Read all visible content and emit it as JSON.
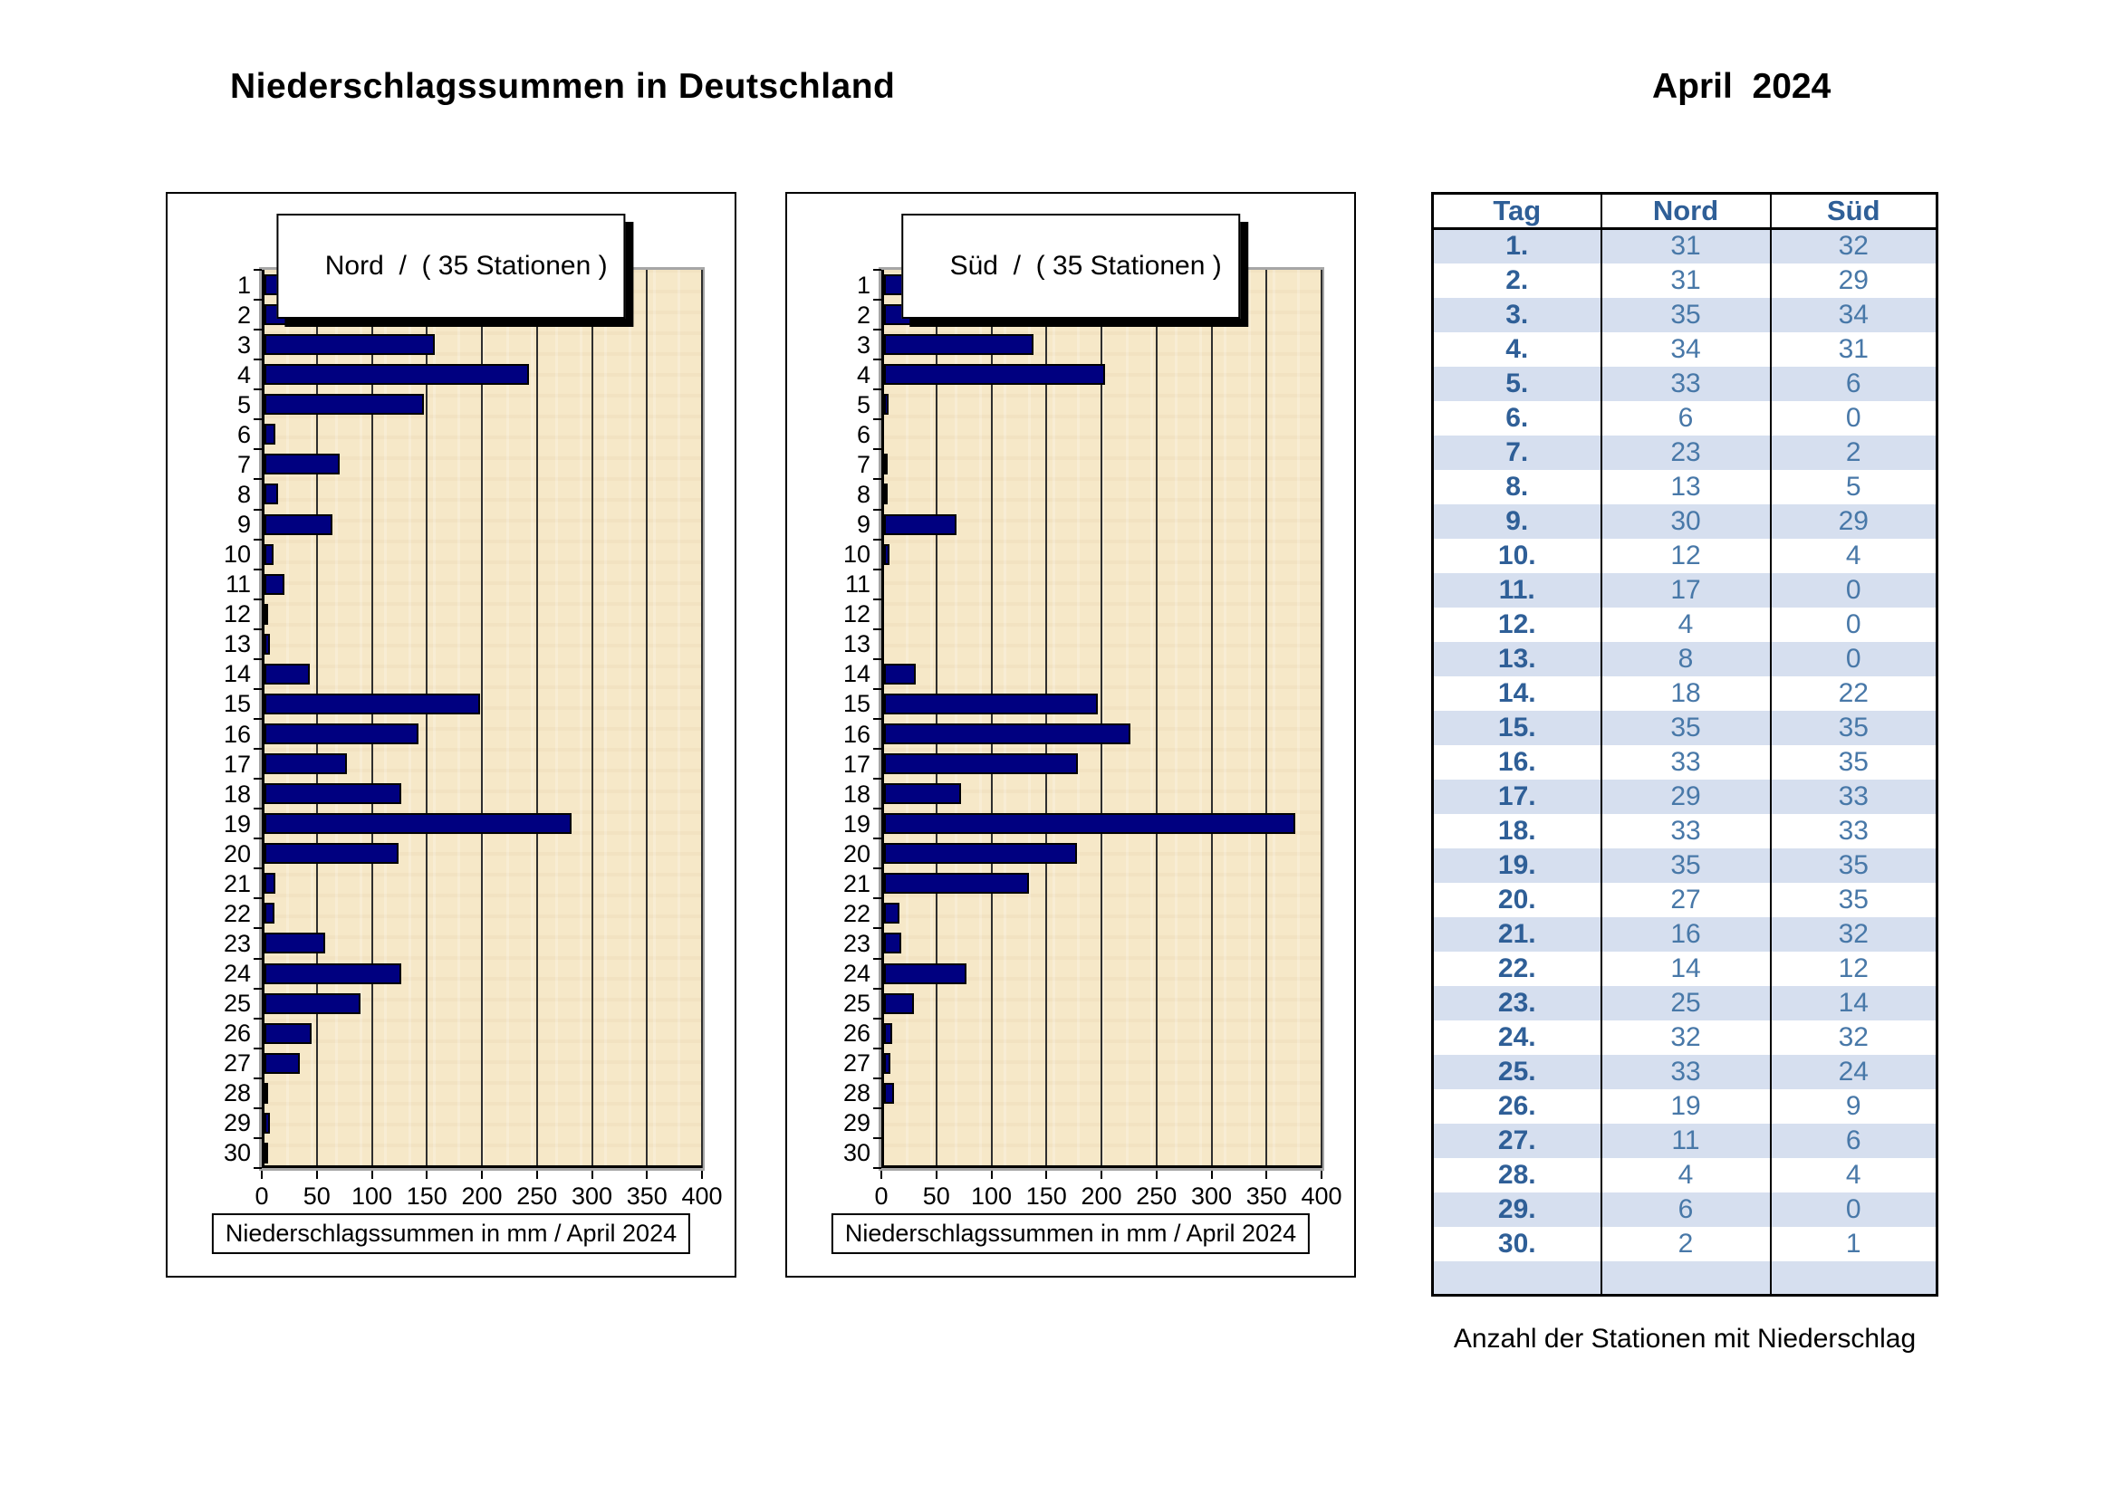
{
  "header": {
    "title": "Niederschlagssummen in Deutschland",
    "period": "April  2024"
  },
  "colors": {
    "bar": "#000080",
    "plot_background": "#f6e8c8",
    "table_band": "#d6dfef",
    "table_value_text": "#4878a8",
    "table_header_text": "#2f5f97"
  },
  "chart_data": [
    {
      "type": "bar",
      "orientation": "horizontal",
      "title": "Nord  /  ( 35 Stationen )",
      "caption": "Niederschlagssummen in mm / April 2024",
      "categories": [
        1,
        2,
        3,
        4,
        5,
        6,
        7,
        8,
        9,
        10,
        11,
        12,
        13,
        14,
        15,
        16,
        17,
        18,
        19,
        20,
        21,
        22,
        23,
        24,
        25,
        26,
        27,
        28,
        29,
        30
      ],
      "values": [
        325,
        100,
        155,
        240,
        145,
        10,
        68,
        12,
        62,
        8,
        18,
        2,
        5,
        41,
        196,
        140,
        75,
        124,
        279,
        122,
        10,
        9,
        55,
        124,
        87,
        43,
        32,
        3,
        5,
        2
      ],
      "xlim": [
        0,
        400
      ],
      "x_ticks": [
        0,
        50,
        100,
        150,
        200,
        250,
        300,
        350,
        400
      ],
      "grid": "vertical"
    },
    {
      "type": "bar",
      "orientation": "horizontal",
      "title": "Süd  /  ( 35 Stationen )",
      "caption": "Niederschlagssummen in mm / April 2024",
      "categories": [
        1,
        2,
        3,
        4,
        5,
        6,
        7,
        8,
        9,
        10,
        11,
        12,
        13,
        14,
        15,
        16,
        17,
        18,
        19,
        20,
        21,
        22,
        23,
        24,
        25,
        26,
        27,
        28,
        29,
        30
      ],
      "values": [
        143,
        32,
        136,
        201,
        4,
        0,
        2,
        3,
        66,
        5,
        0,
        0,
        0,
        29,
        194,
        224,
        176,
        70,
        374,
        175,
        132,
        14,
        16,
        75,
        27,
        7,
        6,
        9,
        0,
        0
      ],
      "xlim": [
        0,
        400
      ],
      "x_ticks": [
        0,
        50,
        100,
        150,
        200,
        250,
        300,
        350,
        400
      ],
      "grid": "vertical"
    },
    {
      "type": "table",
      "columns": [
        "Tag",
        "Nord",
        "Süd"
      ],
      "rows": [
        [
          "1.",
          31,
          32
        ],
        [
          "2.",
          31,
          29
        ],
        [
          "3.",
          35,
          34
        ],
        [
          "4.",
          34,
          31
        ],
        [
          "5.",
          33,
          6
        ],
        [
          "6.",
          6,
          0
        ],
        [
          "7.",
          23,
          2
        ],
        [
          "8.",
          13,
          5
        ],
        [
          "9.",
          30,
          29
        ],
        [
          "10.",
          12,
          4
        ],
        [
          "11.",
          17,
          0
        ],
        [
          "12.",
          4,
          0
        ],
        [
          "13.",
          8,
          0
        ],
        [
          "14.",
          18,
          22
        ],
        [
          "15.",
          35,
          35
        ],
        [
          "16.",
          33,
          35
        ],
        [
          "17.",
          29,
          33
        ],
        [
          "18.",
          33,
          33
        ],
        [
          "19.",
          35,
          35
        ],
        [
          "20.",
          27,
          35
        ],
        [
          "21.",
          16,
          32
        ],
        [
          "22.",
          14,
          12
        ],
        [
          "23.",
          25,
          14
        ],
        [
          "24.",
          32,
          32
        ],
        [
          "25.",
          33,
          24
        ],
        [
          "26.",
          19,
          9
        ],
        [
          "27.",
          11,
          6
        ],
        [
          "28.",
          4,
          4
        ],
        [
          "29.",
          6,
          0
        ],
        [
          "30.",
          2,
          1
        ]
      ],
      "footer": "Anzahl der Stationen mit Niederschlag"
    }
  ]
}
